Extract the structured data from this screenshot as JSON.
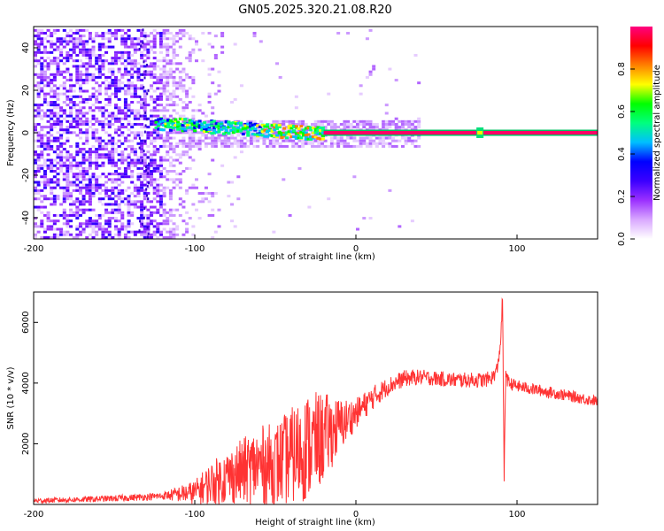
{
  "figure_title": "GN05.2025.320.21.08.R20",
  "chart_data": [
    {
      "type": "heatmap",
      "title": "",
      "xlabel": "Height of straight line (km)",
      "ylabel": "Frequency (Hz)",
      "xlim": [
        -200,
        150
      ],
      "ylim": [
        -50,
        50
      ],
      "x_ticks": [
        "-200",
        "-100",
        "0",
        "100"
      ],
      "y_ticks": [
        "-40",
        "-20",
        "0",
        "20",
        "40"
      ],
      "colorbar": {
        "label": "Normalized spectral amplitude",
        "range": [
          0,
          1
        ],
        "ticks": [
          "0.0",
          "0.2",
          "0.4",
          "0.6",
          "0.8"
        ],
        "colors": [
          "#ffffff",
          "#d9a8ff",
          "#9b30ff",
          "#3b00ff",
          "#0000ff",
          "#00bfff",
          "#00ff7f",
          "#00ff00",
          "#ffff00",
          "#ff8000",
          "#ff0000",
          "#ff0080"
        ]
      },
      "features": {
        "carrier_frequency_hz": 0,
        "carrier_start_km": -20,
        "carrier_end_km": 150,
        "scintillation_region_km": [
          -200,
          -20
        ],
        "dense_noise_region_km": [
          -200,
          -120
        ],
        "vertical_streak_km": [
          -135,
          -129
        ],
        "burst_km": 77
      }
    },
    {
      "type": "line",
      "title": "",
      "xlabel": "Height of straight line (km)",
      "ylabel": "SNR (10 * v/v)",
      "xlim": [
        -200,
        150
      ],
      "ylim": [
        0,
        7000
      ],
      "x_ticks": [
        "-200",
        "-100",
        "0",
        "100"
      ],
      "y_ticks": [
        "2000",
        "4000",
        "6000"
      ],
      "series": [
        {
          "color": "#ff3333",
          "x": [
            -200,
            -180,
            -160,
            -140,
            -120,
            -100,
            -90,
            -80,
            -70,
            -60,
            -50,
            -40,
            -30,
            -20,
            -10,
            0,
            10,
            20,
            30,
            40,
            50,
            60,
            70,
            80,
            85,
            88,
            90,
            91,
            92,
            93,
            94,
            95,
            100,
            110,
            120,
            130,
            140,
            150
          ],
          "y": [
            120,
            150,
            180,
            220,
            280,
            400,
            700,
            900,
            1100,
            1300,
            1300,
            1600,
            1900,
            2200,
            2600,
            3000,
            3500,
            3900,
            4150,
            4200,
            4150,
            4100,
            4100,
            4100,
            4200,
            4500,
            5500,
            6900,
            800,
            4500,
            4100,
            4000,
            3900,
            3800,
            3700,
            3600,
            3500,
            3400
          ],
          "noise_envelope": {
            "x": [
              -200,
              -120,
              -100,
              -90,
              -80,
              -70,
              -60,
              -50,
              -40,
              -30,
              -20,
              -10,
              0,
              20,
              40,
              80,
              100,
              150
            ],
            "amp": [
              80,
              120,
              400,
              700,
              900,
              1100,
              1300,
              1400,
              1600,
              1800,
              1500,
              900,
              500,
              300,
              250,
              250,
              200,
              180
            ]
          }
        }
      ]
    }
  ]
}
